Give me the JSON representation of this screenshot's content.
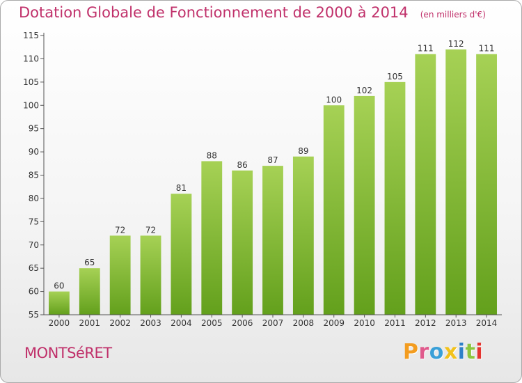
{
  "colors": {
    "title": "#c0306a",
    "bar_top": "#a6d155",
    "bar_bottom": "#63a01c",
    "axis": "#555555",
    "grid": "#dddddd",
    "text": "#333333"
  },
  "title": {
    "main": "Dotation Globale de Fonctionnement de 2000 à 2014",
    "unit": "(en milliers d'€)"
  },
  "municipality": "MONTSéRET",
  "logo": {
    "text": "Proxiti",
    "letter_colors": [
      "#f39c1f",
      "#e05a8c",
      "#3aa0d8",
      "#f2c21b",
      "#2f80c8",
      "#8cc63f",
      "#e4342f"
    ]
  },
  "chart_data": {
    "type": "bar",
    "categories": [
      "2000",
      "2001",
      "2002",
      "2003",
      "2004",
      "2005",
      "2006",
      "2007",
      "2008",
      "2009",
      "2010",
      "2011",
      "2012",
      "2013",
      "2014"
    ],
    "values": [
      60,
      65,
      72,
      72,
      81,
      88,
      86,
      87,
      89,
      100,
      102,
      105,
      111,
      112,
      111
    ],
    "value_labels": [
      "60",
      "65",
      "72",
      "72",
      "81",
      "88",
      "86",
      "87",
      "89",
      "100",
      "102",
      "105",
      "111",
      "112",
      "111"
    ],
    "ylim": [
      55,
      115
    ],
    "yticks": [
      "55",
      "60",
      "65",
      "70",
      "75",
      "80",
      "85",
      "90",
      "95",
      "100",
      "105",
      "110",
      "115"
    ],
    "grid": false,
    "legend": "none"
  }
}
